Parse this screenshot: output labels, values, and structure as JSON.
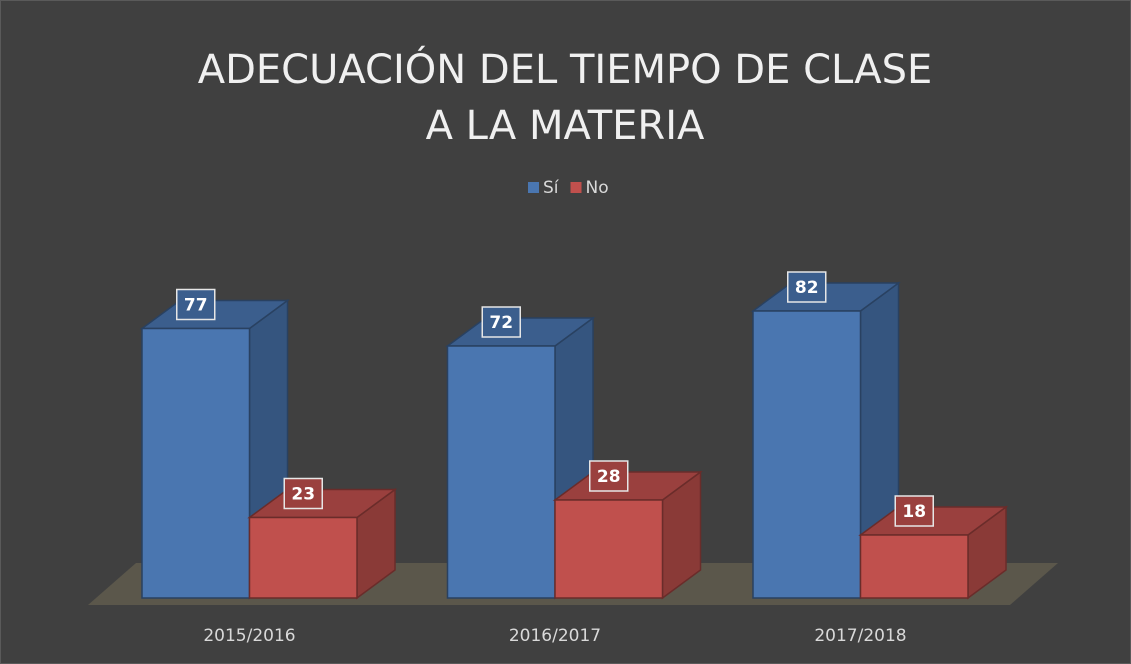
{
  "chart_data": {
    "type": "bar3d",
    "title": [
      "ADECUACIÓN DEL TIEMPO DE CLASE",
      "A LA MATERIA"
    ],
    "categories": [
      "2015/2016",
      "2016/2017",
      "2017/2018"
    ],
    "series": [
      {
        "name": "Sí",
        "color": "#4a76b0",
        "values": [
          77,
          72,
          82
        ]
      },
      {
        "name": "No",
        "color": "#c0504d",
        "values": [
          23,
          28,
          18
        ]
      }
    ],
    "legend": "top"
  }
}
